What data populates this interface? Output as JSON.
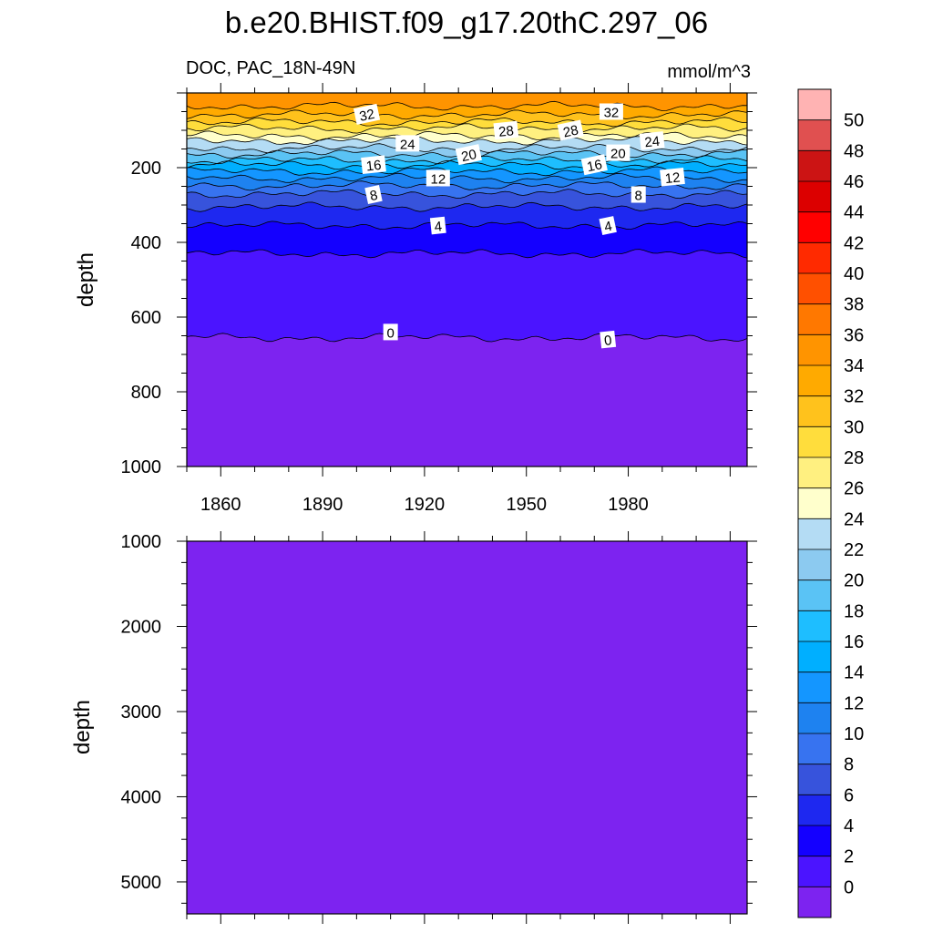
{
  "title": "b.e20.BHIST.f09_g17.20thC.297_06",
  "variable_label": "DOC, PAC_18N-49N",
  "units_label": "mmol/m^3",
  "chart_data": [
    {
      "type": "contour",
      "panel": "upper",
      "ylabel": "depth",
      "y_reversed": true,
      "xlim": [
        1850,
        2015
      ],
      "ylim": [
        0,
        1000
      ],
      "x_ticks": [
        1860,
        1890,
        1920,
        1950,
        1980
      ],
      "y_ticks": [
        200,
        400,
        600,
        800,
        1000
      ],
      "contour_depths": [
        {
          "level": 34,
          "depth": 35
        },
        {
          "level": 32,
          "depth": 58
        },
        {
          "level": 30,
          "depth": 78
        },
        {
          "level": 28,
          "depth": 95
        },
        {
          "level": 26,
          "depth": 115
        },
        {
          "level": 24,
          "depth": 128
        },
        {
          "level": 22,
          "depth": 148
        },
        {
          "level": 20,
          "depth": 163
        },
        {
          "level": 18,
          "depth": 180
        },
        {
          "level": 16,
          "depth": 193
        },
        {
          "level": 14,
          "depth": 210
        },
        {
          "level": 12,
          "depth": 228
        },
        {
          "level": 10,
          "depth": 248
        },
        {
          "level": 8,
          "depth": 270
        },
        {
          "level": 6,
          "depth": 305
        },
        {
          "level": 4,
          "depth": 355
        },
        {
          "level": 2,
          "depth": 430
        },
        {
          "level": 0,
          "depth": 655
        }
      ],
      "contour_labels": [
        {
          "text": "32",
          "x": 1903,
          "depth": 57
        },
        {
          "text": "32",
          "x": 1975,
          "depth": 50
        },
        {
          "text": "28",
          "x": 1944,
          "depth": 100
        },
        {
          "text": "28",
          "x": 1963,
          "depth": 100
        },
        {
          "text": "24",
          "x": 1915,
          "depth": 135
        },
        {
          "text": "24",
          "x": 1987,
          "depth": 128
        },
        {
          "text": "20",
          "x": 1933,
          "depth": 165
        },
        {
          "text": "20",
          "x": 1977,
          "depth": 160
        },
        {
          "text": "16",
          "x": 1905,
          "depth": 192
        },
        {
          "text": "16",
          "x": 1970,
          "depth": 192
        },
        {
          "text": "12",
          "x": 1924,
          "depth": 228
        },
        {
          "text": "12",
          "x": 1993,
          "depth": 225
        },
        {
          "text": "8",
          "x": 1905,
          "depth": 272
        },
        {
          "text": "8",
          "x": 1983,
          "depth": 272
        },
        {
          "text": "4",
          "x": 1924,
          "depth": 355
        },
        {
          "text": "4",
          "x": 1974,
          "depth": 355
        },
        {
          "text": "0",
          "x": 1910,
          "depth": 640
        },
        {
          "text": "0",
          "x": 1974,
          "depth": 660
        }
      ]
    },
    {
      "type": "contour",
      "panel": "lower",
      "ylabel": "depth",
      "y_reversed": true,
      "xlim": [
        1850,
        2015
      ],
      "ylim": [
        1000,
        5375
      ],
      "y_ticks": [
        1000,
        2000,
        3000,
        4000,
        5000
      ],
      "uniform_level": -2
    }
  ],
  "colorbar": {
    "labels": [
      "50",
      "48",
      "46",
      "44",
      "42",
      "40",
      "38",
      "36",
      "34",
      "32",
      "30",
      "28",
      "26",
      "24",
      "22",
      "20",
      "18",
      "16",
      "14",
      "12",
      "10",
      "8",
      "6",
      "4",
      "2",
      "0"
    ],
    "colors_top_to_bottom": [
      "#ffb3b3",
      "#e05050",
      "#cc1414",
      "#dc0000",
      "#ff0000",
      "#ff2a00",
      "#ff5000",
      "#ff7800",
      "#ff9400",
      "#ffaa00",
      "#ffc21c",
      "#ffdd3c",
      "#fff080",
      "#ffffcc",
      "#b4dcf4",
      "#8ccaf0",
      "#5ac3f5",
      "#1ebeff",
      "#00afff",
      "#1496ff",
      "#1e82f0",
      "#3773f0",
      "#3753dc",
      "#1e28f0",
      "#1400ff",
      "#4b14ff",
      "#7d23f0"
    ]
  }
}
